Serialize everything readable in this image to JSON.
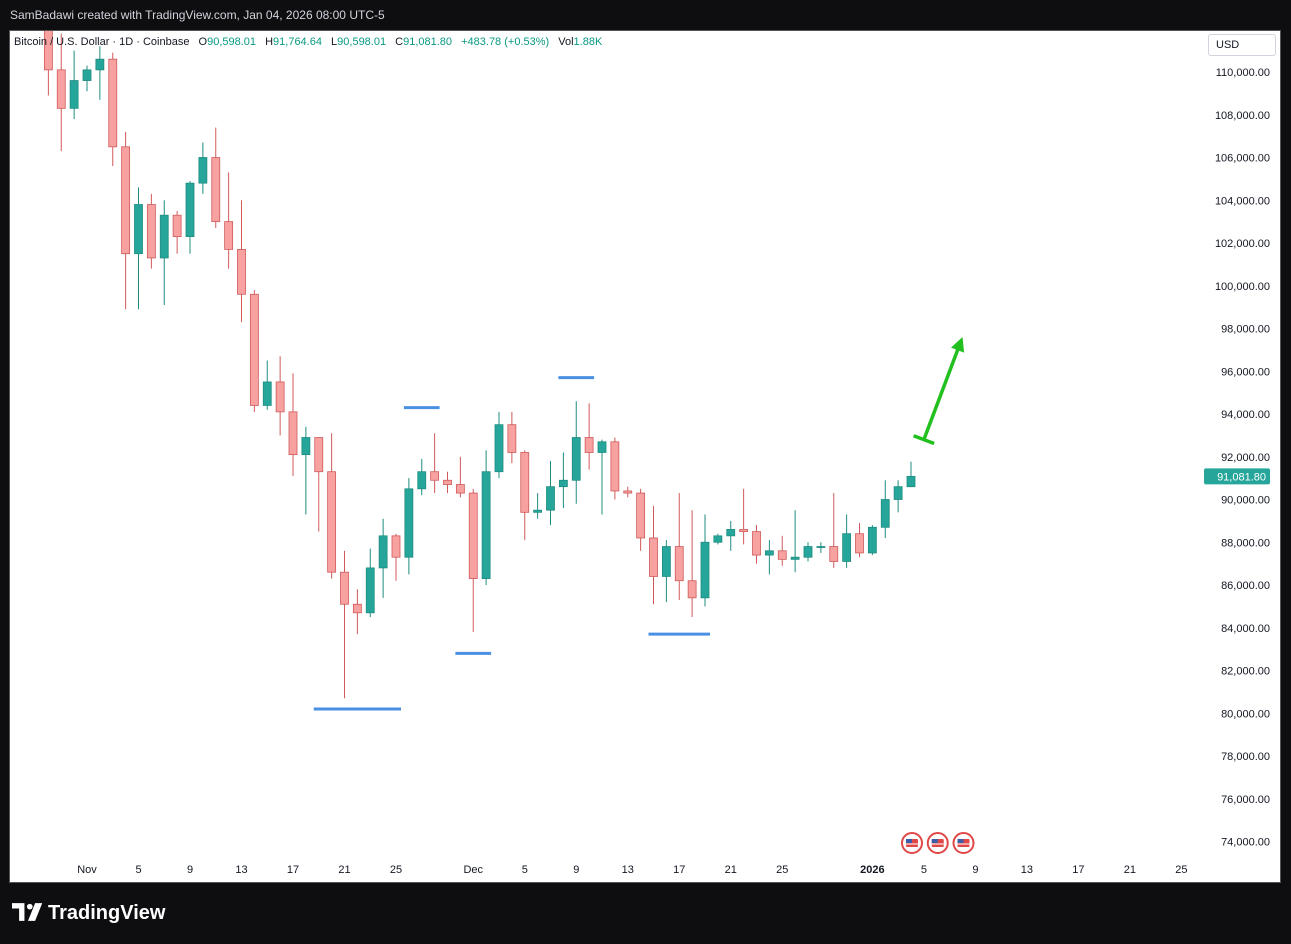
{
  "attribution": "SamBadawi created with TradingView.com, Jan 04, 2026 08:00 UTC-5",
  "legend": {
    "symbol": "Bitcoin / U.S. Dollar · 1D · Coinbase",
    "open_label": "O",
    "open": "90,598.01",
    "high_label": "H",
    "high": "91,764.64",
    "low_label": "L",
    "low": "90,598.01",
    "close_label": "C",
    "close": "91,081.80",
    "change": "+483.78 (+0.53%)",
    "vol_label": "Vol",
    "vol": "1.88K"
  },
  "axis": {
    "currency": "USD",
    "price_label": "91,081.80"
  },
  "brand": {
    "name": "TradingView"
  },
  "colors": {
    "up": "#26a69a",
    "down": "#f7a1a1",
    "down_border": "#d05a5a",
    "level": "#4a90e2",
    "arrow": "#22c01f",
    "price_tag": "#26a69a"
  },
  "chart_data": {
    "type": "candlestick",
    "ylim": [
      72800,
      112000
    ],
    "y_ticks": [
      "110,000.00",
      "108,000.00",
      "106,000.00",
      "104,000.00",
      "102,000.00",
      "100,000.00",
      "98,000.00",
      "96,000.00",
      "94,000.00",
      "92,000.00",
      "90,000.00",
      "88,000.00",
      "86,000.00",
      "84,000.00",
      "82,000.00",
      "80,000.00",
      "78,000.00",
      "76,000.00",
      "74,000.00"
    ],
    "y_tick_values": [
      110000,
      108000,
      106000,
      104000,
      102000,
      100000,
      98000,
      96000,
      94000,
      92000,
      90000,
      88000,
      86000,
      84000,
      82000,
      80000,
      78000,
      76000,
      74000
    ],
    "x_ticks": [
      {
        "label": "Nov",
        "date": "2025-11-01"
      },
      {
        "label": "5",
        "date": "2025-11-05"
      },
      {
        "label": "9",
        "date": "2025-11-09"
      },
      {
        "label": "13",
        "date": "2025-11-13"
      },
      {
        "label": "17",
        "date": "2025-11-17"
      },
      {
        "label": "21",
        "date": "2025-11-21"
      },
      {
        "label": "25",
        "date": "2025-11-25"
      },
      {
        "label": "Dec",
        "date": "2025-12-01"
      },
      {
        "label": "5",
        "date": "2025-12-05"
      },
      {
        "label": "9",
        "date": "2025-12-09"
      },
      {
        "label": "13",
        "date": "2025-12-13"
      },
      {
        "label": "17",
        "date": "2025-12-17"
      },
      {
        "label": "21",
        "date": "2025-12-21"
      },
      {
        "label": "25",
        "date": "2025-12-25"
      },
      {
        "label": "2026",
        "date": "2026-01-01"
      },
      {
        "label": "5",
        "date": "2026-01-05"
      },
      {
        "label": "9",
        "date": "2026-01-09"
      },
      {
        "label": "13",
        "date": "2026-01-13"
      },
      {
        "label": "17",
        "date": "2026-01-17"
      },
      {
        "label": "21",
        "date": "2026-01-21"
      },
      {
        "label": "25",
        "date": "2026-01-25"
      }
    ],
    "candles": [
      {
        "date": "2025-10-29",
        "o": 112500,
        "h": 113200,
        "l": 108900,
        "c": 110100
      },
      {
        "date": "2025-10-30",
        "o": 110100,
        "h": 111800,
        "l": 106300,
        "c": 108300
      },
      {
        "date": "2025-10-31",
        "o": 108300,
        "h": 111000,
        "l": 107800,
        "c": 109600
      },
      {
        "date": "2025-11-01",
        "o": 109600,
        "h": 110300,
        "l": 109100,
        "c": 110100
      },
      {
        "date": "2025-11-02",
        "o": 110100,
        "h": 111200,
        "l": 108700,
        "c": 110600
      },
      {
        "date": "2025-11-03",
        "o": 110600,
        "h": 110900,
        "l": 105600,
        "c": 106500
      },
      {
        "date": "2025-11-04",
        "o": 106500,
        "h": 107200,
        "l": 98900,
        "c": 101500
      },
      {
        "date": "2025-11-05",
        "o": 101500,
        "h": 104600,
        "l": 98900,
        "c": 103800
      },
      {
        "date": "2025-11-06",
        "o": 103800,
        "h": 104300,
        "l": 100800,
        "c": 101300
      },
      {
        "date": "2025-11-07",
        "o": 101300,
        "h": 104000,
        "l": 99100,
        "c": 103300
      },
      {
        "date": "2025-11-08",
        "o": 103300,
        "h": 103500,
        "l": 101500,
        "c": 102300
      },
      {
        "date": "2025-11-09",
        "o": 102300,
        "h": 104900,
        "l": 101500,
        "c": 104800
      },
      {
        "date": "2025-11-10",
        "o": 104800,
        "h": 106700,
        "l": 104300,
        "c": 106000
      },
      {
        "date": "2025-11-11",
        "o": 106000,
        "h": 107400,
        "l": 102700,
        "c": 103000
      },
      {
        "date": "2025-11-12",
        "o": 103000,
        "h": 105300,
        "l": 100800,
        "c": 101700
      },
      {
        "date": "2025-11-13",
        "o": 101700,
        "h": 104000,
        "l": 98300,
        "c": 99600
      },
      {
        "date": "2025-11-14",
        "o": 99600,
        "h": 99800,
        "l": 94100,
        "c": 94400
      },
      {
        "date": "2025-11-15",
        "o": 94400,
        "h": 96500,
        "l": 94200,
        "c": 95500
      },
      {
        "date": "2025-11-16",
        "o": 95500,
        "h": 96700,
        "l": 93000,
        "c": 94100
      },
      {
        "date": "2025-11-17",
        "o": 94100,
        "h": 95900,
        "l": 91100,
        "c": 92100
      },
      {
        "date": "2025-11-18",
        "o": 92100,
        "h": 93400,
        "l": 89300,
        "c": 92900
      },
      {
        "date": "2025-11-19",
        "o": 92900,
        "h": 92900,
        "l": 88500,
        "c": 91300
      },
      {
        "date": "2025-11-20",
        "o": 91300,
        "h": 93100,
        "l": 86300,
        "c": 86600
      },
      {
        "date": "2025-11-21",
        "o": 86600,
        "h": 87600,
        "l": 80700,
        "c": 85100
      },
      {
        "date": "2025-11-22",
        "o": 85100,
        "h": 85800,
        "l": 83700,
        "c": 84700
      },
      {
        "date": "2025-11-23",
        "o": 84700,
        "h": 87700,
        "l": 84500,
        "c": 86800
      },
      {
        "date": "2025-11-24",
        "o": 86800,
        "h": 89100,
        "l": 85400,
        "c": 88300
      },
      {
        "date": "2025-11-25",
        "o": 88300,
        "h": 88400,
        "l": 86200,
        "c": 87300
      },
      {
        "date": "2025-11-26",
        "o": 87300,
        "h": 91000,
        "l": 86500,
        "c": 90500
      },
      {
        "date": "2025-11-27",
        "o": 90500,
        "h": 91900,
        "l": 90200,
        "c": 91300
      },
      {
        "date": "2025-11-28",
        "o": 91300,
        "h": 93100,
        "l": 90300,
        "c": 90900
      },
      {
        "date": "2025-11-29",
        "o": 90900,
        "h": 91300,
        "l": 90300,
        "c": 90700
      },
      {
        "date": "2025-11-30",
        "o": 90700,
        "h": 92000,
        "l": 90100,
        "c": 90300
      },
      {
        "date": "2025-12-01",
        "o": 90300,
        "h": 90500,
        "l": 83800,
        "c": 86300
      },
      {
        "date": "2025-12-02",
        "o": 86300,
        "h": 92300,
        "l": 86000,
        "c": 91300
      },
      {
        "date": "2025-12-03",
        "o": 91300,
        "h": 94100,
        "l": 91000,
        "c": 93500
      },
      {
        "date": "2025-12-04",
        "o": 93500,
        "h": 94100,
        "l": 91700,
        "c": 92200
      },
      {
        "date": "2025-12-05",
        "o": 92200,
        "h": 92300,
        "l": 88100,
        "c": 89400
      },
      {
        "date": "2025-12-06",
        "o": 89400,
        "h": 90300,
        "l": 89100,
        "c": 89500
      },
      {
        "date": "2025-12-07",
        "o": 89500,
        "h": 91800,
        "l": 88800,
        "c": 90600
      },
      {
        "date": "2025-12-08",
        "o": 90600,
        "h": 92200,
        "l": 89600,
        "c": 90900
      },
      {
        "date": "2025-12-09",
        "o": 90900,
        "h": 94600,
        "l": 89800,
        "c": 92900
      },
      {
        "date": "2025-12-10",
        "o": 92900,
        "h": 94500,
        "l": 91400,
        "c": 92200
      },
      {
        "date": "2025-12-11",
        "o": 92200,
        "h": 92800,
        "l": 89300,
        "c": 92700
      },
      {
        "date": "2025-12-12",
        "o": 92700,
        "h": 92900,
        "l": 90000,
        "c": 90400
      },
      {
        "date": "2025-12-13",
        "o": 90400,
        "h": 90600,
        "l": 90100,
        "c": 90300
      },
      {
        "date": "2025-12-14",
        "o": 90300,
        "h": 90500,
        "l": 87600,
        "c": 88200
      },
      {
        "date": "2025-12-15",
        "o": 88200,
        "h": 89700,
        "l": 85100,
        "c": 86400
      },
      {
        "date": "2025-12-16",
        "o": 86400,
        "h": 88100,
        "l": 85200,
        "c": 87800
      },
      {
        "date": "2025-12-17",
        "o": 87800,
        "h": 90300,
        "l": 85300,
        "c": 86200
      },
      {
        "date": "2025-12-18",
        "o": 86200,
        "h": 89500,
        "l": 84500,
        "c": 85400
      },
      {
        "date": "2025-12-19",
        "o": 85400,
        "h": 89300,
        "l": 85000,
        "c": 88000
      },
      {
        "date": "2025-12-20",
        "o": 88000,
        "h": 88400,
        "l": 87900,
        "c": 88300
      },
      {
        "date": "2025-12-21",
        "o": 88300,
        "h": 89000,
        "l": 87600,
        "c": 88600
      },
      {
        "date": "2025-12-22",
        "o": 88600,
        "h": 90500,
        "l": 87900,
        "c": 88500
      },
      {
        "date": "2025-12-23",
        "o": 88500,
        "h": 88800,
        "l": 87000,
        "c": 87400
      },
      {
        "date": "2025-12-24",
        "o": 87400,
        "h": 88100,
        "l": 86500,
        "c": 87600
      },
      {
        "date": "2025-12-25",
        "o": 87600,
        "h": 88300,
        "l": 86900,
        "c": 87200
      },
      {
        "date": "2025-12-26",
        "o": 87200,
        "h": 89500,
        "l": 86600,
        "c": 87300
      },
      {
        "date": "2025-12-27",
        "o": 87300,
        "h": 88000,
        "l": 87100,
        "c": 87800
      },
      {
        "date": "2025-12-28",
        "o": 87800,
        "h": 88000,
        "l": 87500,
        "c": 87800
      },
      {
        "date": "2025-12-29",
        "o": 87800,
        "h": 90300,
        "l": 86800,
        "c": 87100
      },
      {
        "date": "2025-12-30",
        "o": 87100,
        "h": 89300,
        "l": 86800,
        "c": 88400
      },
      {
        "date": "2025-12-31",
        "o": 88400,
        "h": 88900,
        "l": 87300,
        "c": 87500
      },
      {
        "date": "2026-01-01",
        "o": 87500,
        "h": 88800,
        "l": 87400,
        "c": 88700
      },
      {
        "date": "2026-01-02",
        "o": 88700,
        "h": 90900,
        "l": 88200,
        "c": 90000
      },
      {
        "date": "2026-01-03",
        "o": 90000,
        "h": 90900,
        "l": 89400,
        "c": 90600
      },
      {
        "date": "2026-01-04",
        "o": 90598.01,
        "h": 91764.64,
        "l": 90598.01,
        "c": 91081.8
      }
    ],
    "levels": [
      {
        "price": 80200,
        "from": "2025-11-19",
        "to": "2025-11-25"
      },
      {
        "price": 94300,
        "from": "2025-11-26",
        "to": "2025-11-28"
      },
      {
        "price": 82800,
        "from": "2025-11-30",
        "to": "2025-12-02"
      },
      {
        "price": 95700,
        "from": "2025-12-08",
        "to": "2025-12-10"
      },
      {
        "price": 83700,
        "from": "2025-12-15",
        "to": "2025-12-19"
      }
    ],
    "arrow": {
      "from": {
        "date": "2026-01-05",
        "price": 92800
      },
      "to": {
        "date": "2026-01-08",
        "price": 97600
      }
    },
    "event_markers": [
      "2026-01-04",
      "2026-01-06",
      "2026-01-08"
    ],
    "last_price": 91081.8
  }
}
